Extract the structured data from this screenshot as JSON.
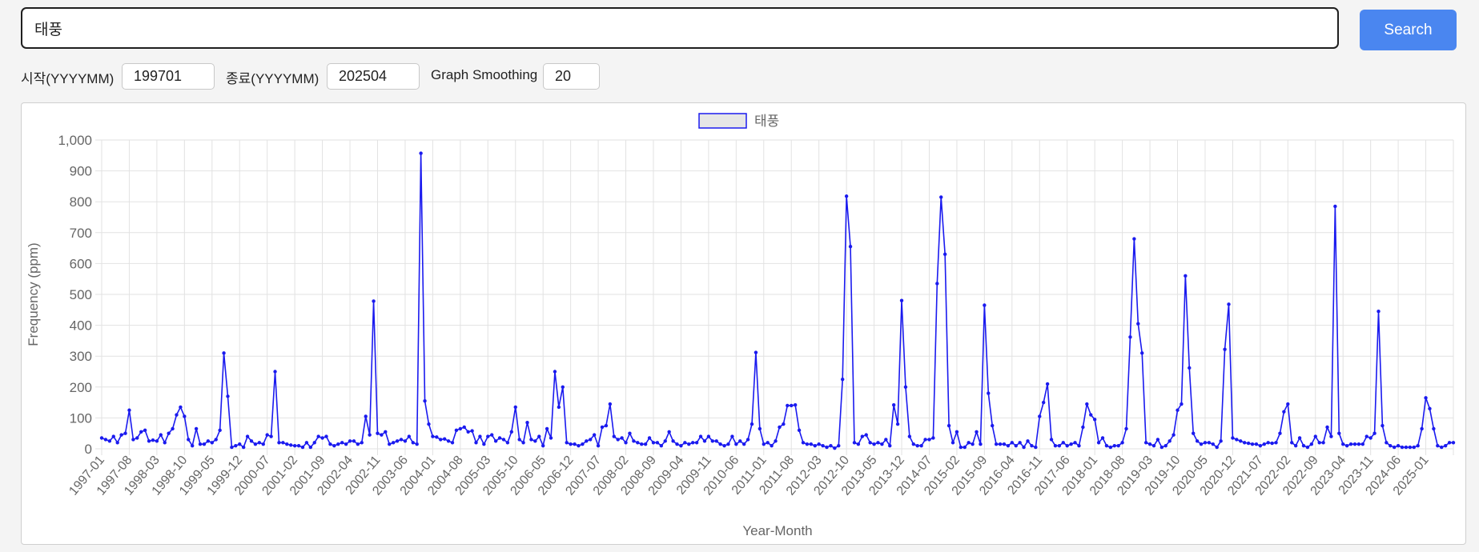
{
  "search": {
    "value": "태풍",
    "button_label": "Search"
  },
  "controls": {
    "start_label": "시작(YYYYMM)",
    "start_value": "199701",
    "end_label": "종료(YYYYMM)",
    "end_value": "202504",
    "smoothing_label": "Graph Smoothing",
    "smoothing_value": "20"
  },
  "colors": {
    "series": "#1a1aef",
    "legend_fill": "#e6e6e6",
    "accent": "#4a86f0"
  },
  "chart_data": {
    "type": "line",
    "legend": [
      "태풍"
    ],
    "xlabel": "Year-Month",
    "ylabel": "Frequency (ppm)",
    "ylim": [
      0,
      1000
    ],
    "yticks": [
      0,
      100,
      200,
      300,
      400,
      500,
      600,
      700,
      800,
      900,
      1000
    ],
    "ytick_labels": [
      "0",
      "100",
      "200",
      "300",
      "400",
      "500",
      "600",
      "700",
      "800",
      "900",
      "1,000"
    ],
    "xtick_labels": [
      "1997-01",
      "1997-08",
      "1998-03",
      "1998-10",
      "1999-05",
      "1999-12",
      "2000-07",
      "2001-02",
      "2001-09",
      "2002-04",
      "2002-11",
      "2003-06",
      "2004-01",
      "2004-08",
      "2005-03",
      "2005-10",
      "2006-05",
      "2006-12",
      "2007-07",
      "2008-02",
      "2008-09",
      "2009-04",
      "2009-11",
      "2010-06",
      "2011-01",
      "2011-08",
      "2012-03",
      "2012-10",
      "2013-05",
      "2013-12",
      "2014-07",
      "2015-02",
      "2015-09",
      "2016-04",
      "2016-11",
      "2017-06",
      "2018-01",
      "2018-08",
      "2019-03",
      "2019-10",
      "2020-05",
      "2020-12",
      "2021-07",
      "2022-02",
      "2022-09",
      "2023-04",
      "2023-11",
      "2024-06",
      "2025-01"
    ],
    "grid": true,
    "series": [
      {
        "name": "태풍",
        "start": "1997-01",
        "values": [
          35,
          30,
          25,
          40,
          20,
          45,
          50,
          125,
          30,
          35,
          55,
          60,
          25,
          28,
          25,
          45,
          20,
          50,
          65,
          110,
          135,
          105,
          30,
          10,
          65,
          15,
          15,
          25,
          20,
          30,
          60,
          310,
          170,
          5,
          10,
          15,
          5,
          40,
          25,
          15,
          20,
          15,
          45,
          40,
          250,
          20,
          20,
          15,
          12,
          10,
          10,
          5,
          20,
          5,
          20,
          40,
          35,
          40,
          15,
          10,
          15,
          20,
          15,
          25,
          25,
          15,
          20,
          105,
          45,
          478,
          50,
          45,
          55,
          15,
          20,
          25,
          30,
          25,
          40,
          20,
          15,
          957,
          155,
          80,
          40,
          38,
          30,
          32,
          25,
          20,
          60,
          65,
          70,
          55,
          58,
          20,
          40,
          15,
          40,
          45,
          25,
          35,
          30,
          20,
          55,
          135,
          30,
          20,
          85,
          30,
          25,
          40,
          10,
          65,
          35,
          250,
          135,
          200,
          20,
          15,
          15,
          10,
          15,
          25,
          30,
          45,
          10,
          70,
          75,
          145,
          40,
          30,
          35,
          20,
          50,
          25,
          20,
          15,
          15,
          35,
          20,
          20,
          10,
          25,
          55,
          25,
          15,
          10,
          20,
          15,
          20,
          20,
          40,
          25,
          40,
          25,
          25,
          15,
          10,
          15,
          40,
          15,
          25,
          15,
          30,
          80,
          312,
          65,
          15,
          20,
          10,
          25,
          70,
          80,
          140,
          140,
          142,
          60,
          20,
          15,
          15,
          10,
          15,
          10,
          5,
          10,
          2,
          10,
          225,
          818,
          655,
          20,
          15,
          40,
          45,
          20,
          15,
          20,
          15,
          30,
          10,
          142,
          80,
          480,
          200,
          40,
          15,
          10,
          10,
          30,
          30,
          35,
          535,
          815,
          630,
          75,
          20,
          55,
          5,
          5,
          20,
          15,
          55,
          15,
          465,
          180,
          75,
          15,
          15,
          15,
          10,
          20,
          10,
          20,
          5,
          25,
          10,
          5,
          105,
          150,
          210,
          30,
          10,
          10,
          20,
          10,
          15,
          20,
          10,
          70,
          145,
          110,
          95,
          20,
          35,
          10,
          5,
          10,
          10,
          20,
          65,
          362,
          680,
          405,
          310,
          20,
          15,
          10,
          30,
          5,
          10,
          25,
          45,
          125,
          145,
          560,
          262,
          50,
          25,
          15,
          20,
          20,
          15,
          5,
          25,
          322,
          468,
          35,
          30,
          25,
          20,
          18,
          15,
          15,
          10,
          15,
          20,
          18,
          20,
          50,
          120,
          145,
          20,
          10,
          35,
          10,
          5,
          15,
          40,
          20,
          20,
          70,
          40,
          785,
          50,
          15,
          10,
          15,
          15,
          15,
          15,
          40,
          35,
          50,
          445,
          75,
          20,
          10,
          5,
          10,
          5,
          5,
          5,
          5,
          10,
          65,
          165,
          130,
          65,
          10,
          5,
          10,
          20,
          20
        ]
      }
    ]
  }
}
